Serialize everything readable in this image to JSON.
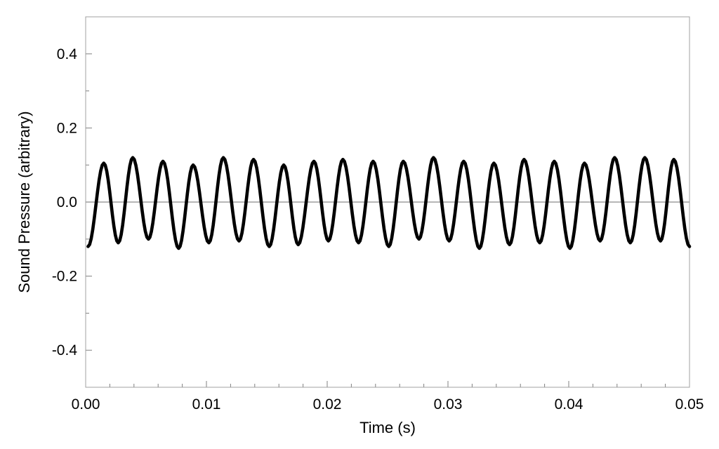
{
  "chart_data": {
    "type": "line",
    "title": "",
    "xlabel": "Time (s)",
    "ylabel": "Sound Pressure (arbitrary)",
    "xlim": [
      0.0,
      0.05
    ],
    "ylim": [
      -0.5,
      0.5
    ],
    "x_ticks": [
      0.0,
      0.01,
      0.02,
      0.03,
      0.04,
      0.05
    ],
    "x_tick_labels": [
      "0.00",
      "0.01",
      "0.02",
      "0.03",
      "0.04",
      "0.05"
    ],
    "y_ticks": [
      0.4,
      0.2,
      0.0,
      -0.2,
      -0.4
    ],
    "y_tick_labels": [
      "0.4",
      "0.2",
      "0.0",
      "-0.2",
      "-0.4"
    ],
    "grid": false,
    "zero_line": true,
    "series_color": "#000000",
    "series": [
      {
        "peaks": [
          [
            0.0015,
            0.105
          ],
          [
            0.0039,
            0.12
          ],
          [
            0.0064,
            0.11
          ],
          [
            0.0089,
            0.1
          ],
          [
            0.0114,
            0.12
          ],
          [
            0.0139,
            0.115
          ],
          [
            0.0164,
            0.1
          ],
          [
            0.0189,
            0.11
          ],
          [
            0.0213,
            0.115
          ],
          [
            0.0238,
            0.11
          ],
          [
            0.0263,
            0.11
          ],
          [
            0.0288,
            0.12
          ],
          [
            0.0313,
            0.11
          ],
          [
            0.0338,
            0.105
          ],
          [
            0.0363,
            0.115
          ],
          [
            0.0388,
            0.11
          ],
          [
            0.0413,
            0.105
          ],
          [
            0.0438,
            0.12
          ],
          [
            0.0463,
            0.12
          ],
          [
            0.0487,
            0.115
          ]
        ],
        "troughs": [
          [
            0.0002,
            -0.12
          ],
          [
            0.0027,
            -0.11
          ],
          [
            0.0052,
            -0.1
          ],
          [
            0.0077,
            -0.125
          ],
          [
            0.0102,
            -0.11
          ],
          [
            0.0127,
            -0.105
          ],
          [
            0.0152,
            -0.12
          ],
          [
            0.0176,
            -0.115
          ],
          [
            0.0201,
            -0.105
          ],
          [
            0.0226,
            -0.11
          ],
          [
            0.0251,
            -0.12
          ],
          [
            0.0276,
            -0.1
          ],
          [
            0.0301,
            -0.105
          ],
          [
            0.0326,
            -0.125
          ],
          [
            0.0351,
            -0.115
          ],
          [
            0.0376,
            -0.11
          ],
          [
            0.0401,
            -0.125
          ],
          [
            0.0426,
            -0.105
          ],
          [
            0.0451,
            -0.11
          ],
          [
            0.0476,
            -0.105
          ],
          [
            0.05,
            -0.12
          ]
        ]
      }
    ]
  }
}
